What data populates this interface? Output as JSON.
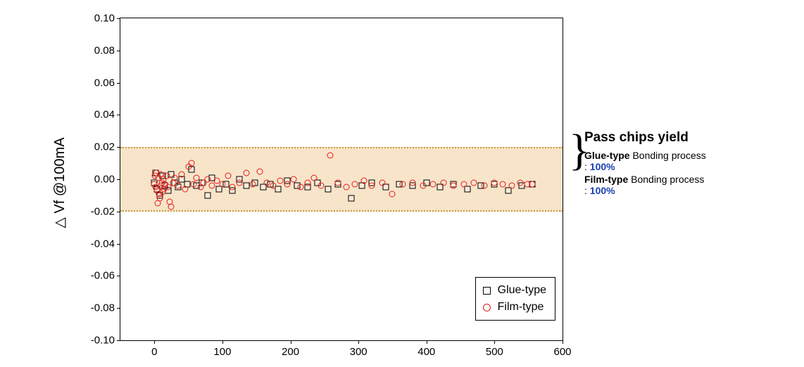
{
  "chart": {
    "type": "scatter",
    "y_label": "△ Vf @100mA",
    "xlim": [
      -50,
      600
    ],
    "ylim": [
      -0.1,
      0.1
    ],
    "y_ticks": [
      -0.1,
      -0.08,
      -0.06,
      -0.04,
      -0.02,
      0.0,
      0.02,
      0.04,
      0.06,
      0.08,
      0.1
    ],
    "y_tick_labels": [
      "-0.10",
      "-0.08",
      "-0.06",
      "-0.04",
      "-0.02",
      "0.00",
      "0.02",
      "0.04",
      "0.06",
      "0.08",
      "0.10"
    ],
    "x_ticks": [
      0,
      100,
      200,
      300,
      400,
      500,
      600
    ],
    "x_tick_labels": [
      "0",
      "100",
      "200",
      "300",
      "400",
      "500",
      "600"
    ],
    "band": {
      "ymin": -0.02,
      "ymax": 0.02,
      "fill": "#f7e4c9",
      "border": "#c79a3a"
    },
    "background": "#ffffff",
    "axis_fontsize": 15,
    "label_fontsize": 20,
    "series": [
      {
        "name": "Glue-type",
        "marker": "square",
        "color": "#000000",
        "points": [
          [
            0,
            -0.002
          ],
          [
            2,
            0.004
          ],
          [
            4,
            -0.006
          ],
          [
            8,
            -0.01
          ],
          [
            12,
            0.002
          ],
          [
            15,
            -0.004
          ],
          [
            20,
            -0.007
          ],
          [
            25,
            0.003
          ],
          [
            30,
            -0.002
          ],
          [
            35,
            -0.005
          ],
          [
            40,
            0.0
          ],
          [
            48,
            -0.003
          ],
          [
            55,
            0.006
          ],
          [
            62,
            -0.004
          ],
          [
            70,
            -0.002
          ],
          [
            78,
            -0.01
          ],
          [
            85,
            0.001
          ],
          [
            95,
            -0.006
          ],
          [
            105,
            -0.003
          ],
          [
            115,
            -0.007
          ],
          [
            125,
            0.0
          ],
          [
            135,
            -0.004
          ],
          [
            148,
            -0.002
          ],
          [
            160,
            -0.005
          ],
          [
            170,
            -0.003
          ],
          [
            182,
            -0.006
          ],
          [
            195,
            -0.001
          ],
          [
            210,
            -0.004
          ],
          [
            225,
            -0.005
          ],
          [
            240,
            -0.002
          ],
          [
            255,
            -0.006
          ],
          [
            270,
            -0.003
          ],
          [
            290,
            -0.012
          ],
          [
            305,
            -0.004
          ],
          [
            320,
            -0.002
          ],
          [
            340,
            -0.005
          ],
          [
            360,
            -0.003
          ],
          [
            380,
            -0.004
          ],
          [
            400,
            -0.002
          ],
          [
            420,
            -0.005
          ],
          [
            440,
            -0.003
          ],
          [
            460,
            -0.006
          ],
          [
            480,
            -0.004
          ],
          [
            500,
            -0.003
          ],
          [
            520,
            -0.007
          ],
          [
            540,
            -0.004
          ],
          [
            555,
            -0.003
          ]
        ]
      },
      {
        "name": "Film-type",
        "marker": "circle",
        "color": "#e31b1b",
        "points": [
          [
            0,
            -0.003
          ],
          [
            1,
            0.002
          ],
          [
            2,
            -0.005
          ],
          [
            3,
            0.004
          ],
          [
            4,
            -0.007
          ],
          [
            5,
            -0.015
          ],
          [
            6,
            0.001
          ],
          [
            7,
            -0.009
          ],
          [
            8,
            -0.012
          ],
          [
            9,
            0.003
          ],
          [
            10,
            -0.004
          ],
          [
            11,
            -0.002
          ],
          [
            12,
            -0.008
          ],
          [
            13,
            0.0
          ],
          [
            14,
            -0.006
          ],
          [
            15,
            -0.003
          ],
          [
            18,
            0.002
          ],
          [
            20,
            -0.005
          ],
          [
            22,
            -0.014
          ],
          [
            25,
            -0.017
          ],
          [
            28,
            -0.002
          ],
          [
            30,
            0.001
          ],
          [
            35,
            -0.004
          ],
          [
            40,
            0.003
          ],
          [
            45,
            -0.006
          ],
          [
            50,
            0.008
          ],
          [
            55,
            0.01
          ],
          [
            58,
            -0.003
          ],
          [
            62,
            0.001
          ],
          [
            68,
            -0.005
          ],
          [
            72,
            -0.002
          ],
          [
            78,
            0.0
          ],
          [
            85,
            -0.004
          ],
          [
            92,
            -0.001
          ],
          [
            100,
            -0.003
          ],
          [
            108,
            0.002
          ],
          [
            115,
            -0.005
          ],
          [
            125,
            -0.002
          ],
          [
            135,
            0.004
          ],
          [
            145,
            -0.003
          ],
          [
            155,
            0.005
          ],
          [
            165,
            -0.002
          ],
          [
            175,
            -0.004
          ],
          [
            185,
            -0.001
          ],
          [
            195,
            -0.003
          ],
          [
            205,
            0.0
          ],
          [
            215,
            -0.005
          ],
          [
            225,
            -0.002
          ],
          [
            235,
            0.001
          ],
          [
            245,
            -0.004
          ],
          [
            258,
            0.015
          ],
          [
            270,
            -0.002
          ],
          [
            282,
            -0.005
          ],
          [
            295,
            -0.003
          ],
          [
            308,
            -0.001
          ],
          [
            320,
            -0.004
          ],
          [
            335,
            -0.002
          ],
          [
            350,
            -0.009
          ],
          [
            365,
            -0.003
          ],
          [
            380,
            -0.002
          ],
          [
            395,
            -0.004
          ],
          [
            410,
            -0.003
          ],
          [
            425,
            -0.002
          ],
          [
            440,
            -0.004
          ],
          [
            455,
            -0.003
          ],
          [
            470,
            -0.002
          ],
          [
            485,
            -0.004
          ],
          [
            500,
            -0.002
          ],
          [
            512,
            -0.003
          ],
          [
            525,
            -0.004
          ],
          [
            538,
            -0.002
          ],
          [
            548,
            -0.003
          ],
          [
            555,
            -0.003
          ]
        ]
      }
    ],
    "legend": {
      "items": [
        "Glue-type",
        "Film-type"
      ],
      "position": "lower-right",
      "fontsize": 16
    }
  },
  "side_panel": {
    "title": "Pass chips yield",
    "rows": [
      {
        "label": "Glue-type",
        "suffix": " Bonding process",
        "value": "100%"
      },
      {
        "label": "Film-type",
        "suffix": " Bonding process",
        "value": "100%"
      }
    ],
    "title_fontsize": 19,
    "text_fontsize": 14,
    "pct_color": "#1a3fb0"
  }
}
